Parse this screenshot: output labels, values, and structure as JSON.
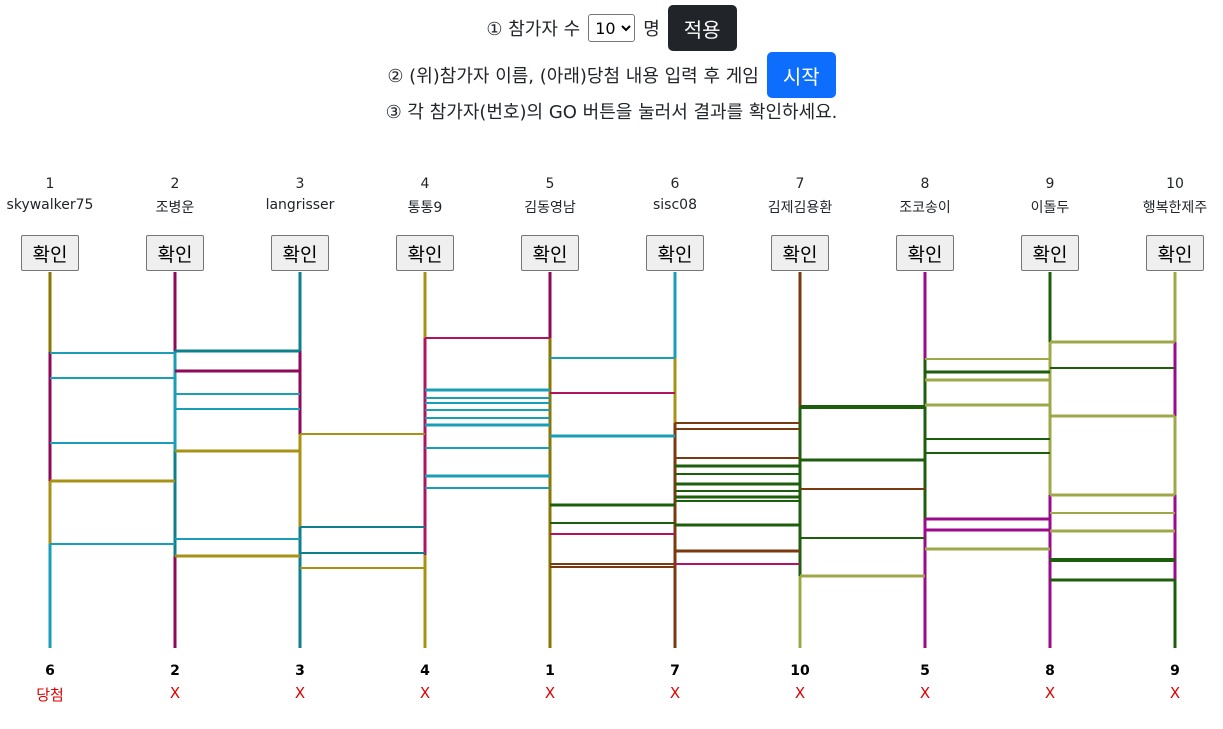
{
  "controls": {
    "step1_prefix": "① 참가자 수",
    "count_value": "10",
    "step1_suffix": "명",
    "apply_label": "적용",
    "step2_text": "② (위)참가자 이름, (아래)당첨 내용 입력 후 게임",
    "start_label": "시작",
    "step3_text": "③ 각 참가자(번호)의 GO 버튼을 눌러서 결과를 확인하세요."
  },
  "participants": [
    {
      "num": "1",
      "name": "skywalker75",
      "button": "확인"
    },
    {
      "num": "2",
      "name": "조병운",
      "button": "확인"
    },
    {
      "num": "3",
      "name": "langrisser",
      "button": "확인"
    },
    {
      "num": "4",
      "name": "통통9",
      "button": "확인"
    },
    {
      "num": "5",
      "name": "김동영남",
      "button": "확인"
    },
    {
      "num": "6",
      "name": "sisc08",
      "button": "확인"
    },
    {
      "num": "7",
      "name": "김제김용환",
      "button": "확인"
    },
    {
      "num": "8",
      "name": "조코송이",
      "button": "확인"
    },
    {
      "num": "9",
      "name": "이돌두",
      "button": "확인"
    },
    {
      "num": "10",
      "name": "행복한제주",
      "button": "확인"
    }
  ],
  "results": [
    {
      "num": "6",
      "text": "당첨"
    },
    {
      "num": "2",
      "text": "X"
    },
    {
      "num": "3",
      "text": "X"
    },
    {
      "num": "4",
      "text": "X"
    },
    {
      "num": "1",
      "text": "X"
    },
    {
      "num": "7",
      "text": "X"
    },
    {
      "num": "10",
      "text": "X"
    },
    {
      "num": "5",
      "text": "X"
    },
    {
      "num": "8",
      "text": "X"
    },
    {
      "num": "9",
      "text": "X"
    }
  ],
  "colors": {
    "c_olive": "#8a7600",
    "c_purple": "#8e0a58",
    "c_teal": "#0f7f8c",
    "c_gold": "#a89214",
    "c_cyan": "#1a9eb8",
    "c_brown": "#7a3a10",
    "c_lime": "#9ea848",
    "c_magenta": "#9b0a8a",
    "c_dgreen": "#1d5e0c",
    "c_rose": "#b0145e"
  }
}
